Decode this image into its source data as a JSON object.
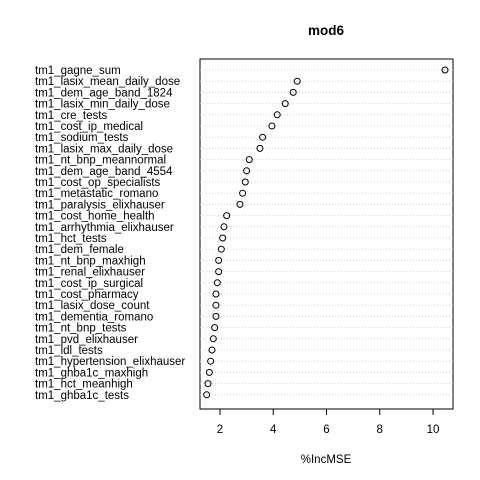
{
  "chart_data": {
    "type": "scatter",
    "title": "mod6",
    "xlabel": "%IncMSE",
    "ylabel": "",
    "xlim": [
      1.25,
      10.75
    ],
    "xticks": [
      2,
      4,
      6,
      8,
      10
    ],
    "grid": "dotted horizontal guide lines",
    "marker": "open circle",
    "points": [
      {
        "label": "tm1_gagne_sum",
        "value": 10.45
      },
      {
        "label": "tm1_lasix_mean_daily_dose",
        "value": 4.9
      },
      {
        "label": "tm1_dem_age_band_1824",
        "value": 4.75
      },
      {
        "label": "tm1_lasix_min_daily_dose",
        "value": 4.45
      },
      {
        "label": "tm1_cre_tests",
        "value": 4.15
      },
      {
        "label": "tm1_cost_ip_medical",
        "value": 3.95
      },
      {
        "label": "tm1_sodium_tests",
        "value": 3.6
      },
      {
        "label": "tm1_lasix_max_daily_dose",
        "value": 3.5
      },
      {
        "label": "tm1_nt_bnp_meannormal",
        "value": 3.1
      },
      {
        "label": "tm1_dem_age_band_4554",
        "value": 3.0
      },
      {
        "label": "tm1_cost_op_specialists",
        "value": 2.95
      },
      {
        "label": "tm1_metastatic_romano",
        "value": 2.85
      },
      {
        "label": "tm1_paralysis_elixhauser",
        "value": 2.75
      },
      {
        "label": "tm1_cost_home_health",
        "value": 2.25
      },
      {
        "label": "tm1_arrhythmia_elixhauser",
        "value": 2.15
      },
      {
        "label": "tm1_hct_tests",
        "value": 2.1
      },
      {
        "label": "tm1_dem_female",
        "value": 2.05
      },
      {
        "label": "tm1_nt_bnp_maxhigh",
        "value": 1.95
      },
      {
        "label": "tm1_renal_elixhauser",
        "value": 1.95
      },
      {
        "label": "tm1_cost_ip_surgical",
        "value": 1.9
      },
      {
        "label": "tm1_cost_pharmacy",
        "value": 1.85
      },
      {
        "label": "tm1_lasix_dose_count",
        "value": 1.85
      },
      {
        "label": "tm1_dementia_romano",
        "value": 1.85
      },
      {
        "label": "tm1_nt_bnp_tests",
        "value": 1.8
      },
      {
        "label": "tm1_pvd_elixhauser",
        "value": 1.75
      },
      {
        "label": "tm1_ldl_tests",
        "value": 1.7
      },
      {
        "label": "tm1_hypertension_elixhauser",
        "value": 1.65
      },
      {
        "label": "tm1_ghba1c_maxhigh",
        "value": 1.6
      },
      {
        "label": "tm1_hct_meanhigh",
        "value": 1.55
      },
      {
        "label": "tm1_ghba1c_tests",
        "value": 1.5
      }
    ]
  }
}
